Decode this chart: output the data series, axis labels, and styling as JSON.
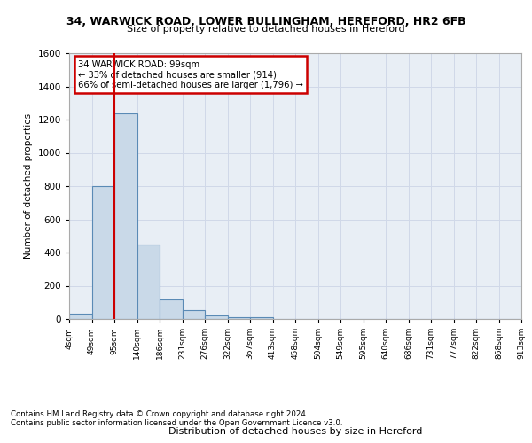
{
  "title_line1": "34, WARWICK ROAD, LOWER BULLINGHAM, HEREFORD, HR2 6FB",
  "title_line2": "Size of property relative to detached houses in Hereford",
  "xlabel": "Distribution of detached houses by size in Hereford",
  "ylabel": "Number of detached properties",
  "footer_line1": "Contains HM Land Registry data © Crown copyright and database right 2024.",
  "footer_line2": "Contains public sector information licensed under the Open Government Licence v3.0.",
  "bin_labels": [
    "4sqm",
    "49sqm",
    "95sqm",
    "140sqm",
    "186sqm",
    "231sqm",
    "276sqm",
    "322sqm",
    "367sqm",
    "413sqm",
    "458sqm",
    "504sqm",
    "549sqm",
    "595sqm",
    "640sqm",
    "686sqm",
    "731sqm",
    "777sqm",
    "822sqm",
    "868sqm",
    "913sqm"
  ],
  "bar_values": [
    30,
    800,
    1240,
    450,
    120,
    55,
    20,
    10,
    10,
    0,
    0,
    0,
    0,
    0,
    0,
    0,
    0,
    0,
    0,
    0
  ],
  "bar_color": "#c9d9e8",
  "bar_edge_color": "#5a8ab5",
  "grid_color": "#d0d8e8",
  "background_color": "#e8eef5",
  "annotation_box_color": "#ffffff",
  "annotation_border_color": "#cc0000",
  "vline_color": "#cc0000",
  "vline_x": 2,
  "annotation_text_line1": "34 WARWICK ROAD: 99sqm",
  "annotation_text_line2": "← 33% of detached houses are smaller (914)",
  "annotation_text_line3": "66% of semi-detached houses are larger (1,796) →",
  "ylim": [
    0,
    1600
  ],
  "yticks": [
    0,
    200,
    400,
    600,
    800,
    1000,
    1200,
    1400,
    1600
  ]
}
